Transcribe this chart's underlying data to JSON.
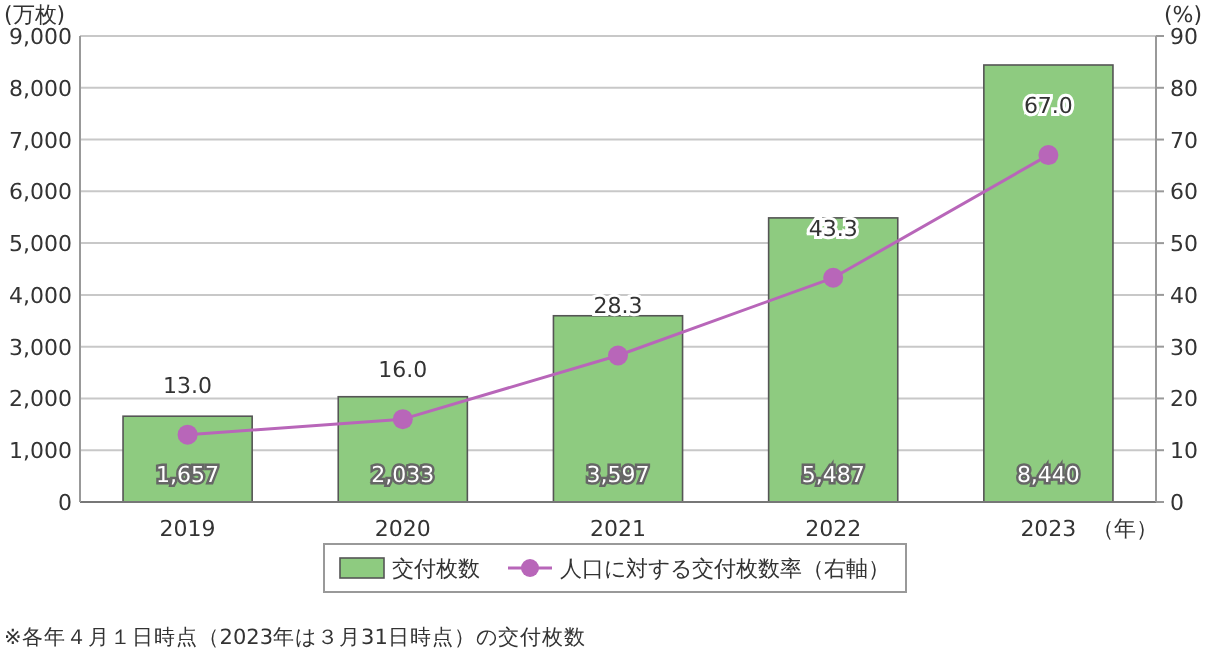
{
  "chart_data": {
    "type": "bar",
    "categories": [
      "2019",
      "2020",
      "2021",
      "2022",
      "2023"
    ],
    "xlabel": "（年）",
    "ylabel": "(万枚)",
    "y2label": "(%)",
    "series": [
      {
        "name": "交付枚数",
        "color": "#8ecb80",
        "values": [
          1657,
          2033,
          3597,
          5487,
          8440
        ],
        "value_labels": [
          "1,657",
          "2,033",
          "3,597",
          "5,487",
          "8,440"
        ]
      },
      {
        "name": "人口に対する交付枚数率（右軸）",
        "type": "line",
        "axis": "y2",
        "color": "#b866b9",
        "values": [
          13.0,
          16.0,
          28.3,
          43.3,
          67.0
        ],
        "value_labels": [
          "13.0",
          "16.0",
          "28.3",
          "43.3",
          "67.0"
        ]
      }
    ],
    "ylim": [
      0,
      9000
    ],
    "yticks": [
      {
        "value": 0,
        "label": "0"
      },
      {
        "value": 1000,
        "label": "1,000"
      },
      {
        "value": 2000,
        "label": "2,000"
      },
      {
        "value": 3000,
        "label": "3,000"
      },
      {
        "value": 4000,
        "label": "4,000"
      },
      {
        "value": 5000,
        "label": "5,000"
      },
      {
        "value": 6000,
        "label": "6,000"
      },
      {
        "value": 7000,
        "label": "7,000"
      },
      {
        "value": 8000,
        "label": "8,000"
      },
      {
        "value": 9000,
        "label": "9,000"
      }
    ],
    "y2lim": [
      0,
      90
    ],
    "y2ticks": [
      0,
      10,
      20,
      30,
      40,
      50,
      60,
      70,
      80,
      90
    ],
    "grid": "y",
    "legend": "bottom",
    "marker": "circle",
    "line_style": "solid",
    "annotations": [
      "※各年４月１日時点（2023年は３月31日時点）の交付枚数"
    ]
  }
}
